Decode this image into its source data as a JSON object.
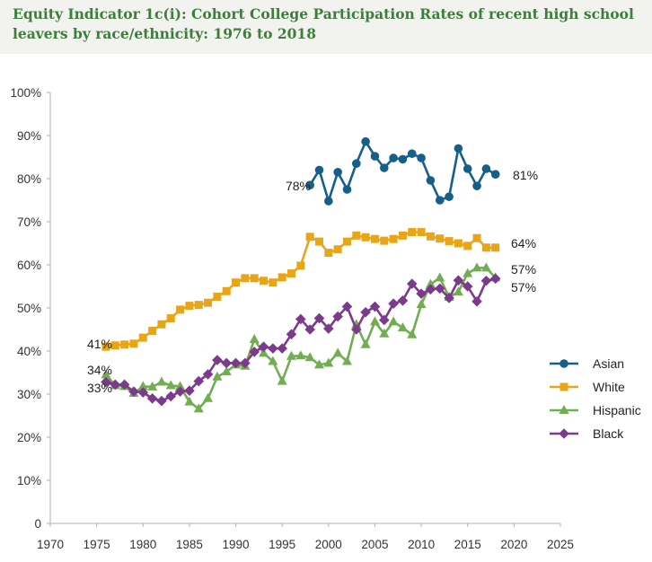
{
  "header": {
    "title": "Equity Indicator 1c(i): Cohort College Participation Rates of recent high school leavers by race/ethnicity: 1976 to 2018"
  },
  "chart_data": {
    "type": "line",
    "title": "Equity Indicator 1c(i): Cohort College Participation Rates of recent high school leavers by race/ethnicity: 1976 to 2018",
    "xlabel": "",
    "ylabel": "",
    "xlim": [
      1970,
      2025
    ],
    "ylim": [
      0,
      100
    ],
    "x_ticks": [
      1970,
      1975,
      1980,
      1985,
      1990,
      1995,
      2000,
      2005,
      2010,
      2015,
      2020,
      2025
    ],
    "x_tick_labels": [
      "1970",
      "1975",
      "1980",
      "1985",
      "1990",
      "1995",
      "2000",
      "2005",
      "2010",
      "2015",
      "2020",
      "2025"
    ],
    "y_ticks": [
      0,
      10,
      20,
      30,
      40,
      50,
      60,
      70,
      80,
      90,
      100
    ],
    "y_tick_labels": [
      "0",
      "10%",
      "20%",
      "30%",
      "40%",
      "50%",
      "60%",
      "70%",
      "80%",
      "90%",
      "100%"
    ],
    "grid": false,
    "legend_position": "right",
    "series": [
      {
        "name": "Asian",
        "color": "#155f8a",
        "marker": "circle",
        "x": [
          1998,
          1999,
          2000,
          2001,
          2002,
          2003,
          2004,
          2005,
          2006,
          2007,
          2008,
          2009,
          2010,
          2011,
          2012,
          2013,
          2014,
          2015,
          2016,
          2017,
          2018
        ],
        "values": [
          78.5,
          82.0,
          74.8,
          81.5,
          77.5,
          83.5,
          88.6,
          85.2,
          82.5,
          84.8,
          84.5,
          85.8,
          84.8,
          79.6,
          75.0,
          75.8,
          87.0,
          82.3,
          78.3,
          82.3,
          81.0
        ],
        "start_label": "78%",
        "end_label": "81%"
      },
      {
        "name": "White",
        "color": "#e8a517",
        "marker": "square",
        "x": [
          1976,
          1977,
          1978,
          1979,
          1980,
          1981,
          1982,
          1983,
          1984,
          1985,
          1986,
          1987,
          1988,
          1989,
          1990,
          1991,
          1992,
          1993,
          1994,
          1995,
          1996,
          1997,
          1998,
          1999,
          2000,
          2001,
          2002,
          2003,
          2004,
          2005,
          2006,
          2007,
          2008,
          2009,
          2010,
          2011,
          2012,
          2013,
          2014,
          2015,
          2016,
          2017,
          2018
        ],
        "values": [
          41.0,
          41.3,
          41.5,
          41.7,
          43.1,
          44.7,
          46.2,
          47.6,
          49.6,
          50.5,
          50.7,
          51.2,
          52.6,
          53.9,
          55.9,
          56.9,
          56.9,
          56.3,
          55.9,
          57.1,
          58.0,
          59.8,
          66.5,
          65.4,
          62.8,
          63.6,
          65.4,
          66.8,
          66.4,
          66.0,
          65.6,
          66.0,
          66.8,
          67.6,
          67.6,
          66.6,
          66.1,
          65.5,
          65.0,
          64.4,
          66.2,
          64.0,
          64.0
        ],
        "start_label": "41%",
        "end_label": "64%"
      },
      {
        "name": "Hispanic",
        "color": "#72ad52",
        "marker": "triangle",
        "x": [
          1976,
          1977,
          1978,
          1979,
          1980,
          1981,
          1982,
          1983,
          1984,
          1985,
          1986,
          1987,
          1988,
          1989,
          1990,
          1991,
          1992,
          1993,
          1994,
          1995,
          1996,
          1997,
          1998,
          1999,
          2000,
          2001,
          2002,
          2003,
          2004,
          2005,
          2006,
          2007,
          2008,
          2009,
          2010,
          2011,
          2012,
          2013,
          2014,
          2015,
          2016,
          2017,
          2018
        ],
        "values": [
          34.5,
          32.0,
          31.8,
          30.2,
          31.8,
          31.7,
          32.8,
          32.0,
          31.8,
          28.2,
          26.6,
          29.0,
          34.0,
          35.2,
          36.8,
          36.5,
          42.7,
          39.5,
          37.6,
          33.0,
          38.8,
          38.9,
          38.5,
          36.8,
          37.2,
          39.5,
          37.6,
          46.2,
          41.5,
          46.8,
          44.0,
          46.8,
          45.4,
          43.8,
          50.8,
          55.5,
          57.0,
          52.5,
          53.7,
          58.0,
          59.3,
          59.3,
          57.0
        ],
        "start_label": "34%",
        "end_label": "57%"
      },
      {
        "name": "Black",
        "color": "#7b3a8c",
        "marker": "diamond",
        "x": [
          1976,
          1977,
          1978,
          1979,
          1980,
          1981,
          1982,
          1983,
          1984,
          1985,
          1986,
          1987,
          1988,
          1989,
          1990,
          1991,
          1992,
          1993,
          1994,
          1995,
          1996,
          1997,
          1998,
          1999,
          2000,
          2001,
          2002,
          2003,
          2004,
          2005,
          2006,
          2007,
          2008,
          2009,
          2010,
          2011,
          2012,
          2013,
          2014,
          2015,
          2016,
          2017,
          2018
        ],
        "values": [
          32.8,
          32.2,
          32.2,
          30.6,
          30.4,
          29.0,
          28.4,
          29.5,
          30.6,
          30.8,
          33.0,
          34.6,
          37.9,
          37.2,
          37.2,
          37.2,
          39.8,
          41.0,
          40.6,
          40.6,
          43.9,
          47.4,
          45.0,
          47.6,
          45.2,
          48.0,
          50.3,
          45.0,
          49.0,
          50.3,
          47.2,
          51.0,
          51.7,
          55.6,
          53.3,
          54.3,
          54.5,
          52.3,
          56.4,
          55.0,
          51.5,
          56.3,
          56.8
        ],
        "start_label": "33%",
        "end_label": "57%"
      }
    ]
  }
}
